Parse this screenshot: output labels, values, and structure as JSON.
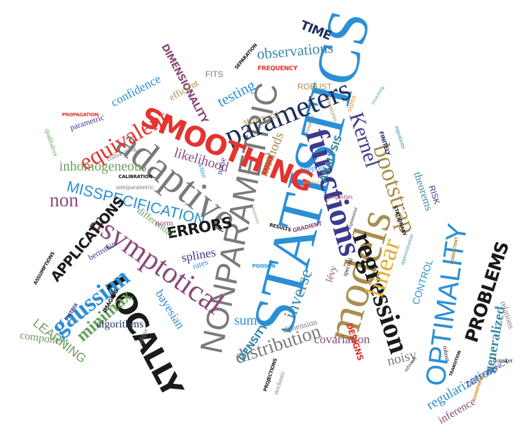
{
  "colors": {
    "blue": "#2b8fd6",
    "navy": "#1f2f5a",
    "gray": "#7a7a7a",
    "olive": "#a98f4c",
    "plum": "#8a4a7a",
    "red": "#e3342f",
    "green": "#6b9e5f",
    "teal": "#3a8aa6",
    "black": "#1a1a1a",
    "orange": "#e0922b"
  },
  "words": {
    "statistics": "STATISTICS",
    "nonparametric": "NONPARAMETRIC",
    "models": "models",
    "adaptive": "adaptive",
    "functions": "functions",
    "parameters": "parameters",
    "regression": "regression",
    "smoothing": "SMOOTHING",
    "asymptotical": "asymptotical",
    "locally": "LOCALLY",
    "optimality": "OPTIMALITY",
    "bootstrap": "bootstrap",
    "linear": "linear",
    "distribution": "distribution",
    "gaussian": "gaussian",
    "equivalent": "equivalent",
    "misspecification": "MISSPECIFICATION",
    "problems": "PROBLEMS",
    "non": "non",
    "kernel": "Kernel",
    "inverse": "inverse",
    "errors": "ERRORS",
    "observations": "observations",
    "inhomogeneous": "inhomogeneous",
    "minimax": "minimax",
    "applications": "APPLICATIONS",
    "testing": "testing",
    "dimensionality": "DIMENSIONALITY",
    "likelihood": "likelihood",
    "methods": "methods",
    "confidence": "confidence",
    "generalized": "generalized",
    "regularization": "regularization",
    "time": "TIME",
    "learning": "LEARNING",
    "covariation": "covariation",
    "noisy": "noisy",
    "bayesian": "bayesian",
    "splines": "splines",
    "sum": "sum",
    "density": "DENSITY",
    "algorithms": "algorithms",
    "component": "component",
    "theorems": "theorems",
    "analysis": "ANALYSIS",
    "control": "CONTROL",
    "designs": "DESIGNS",
    "inference": "inference",
    "efficient": "efficient",
    "fits": "FITS",
    "robust": "ROBUST",
    "frequency": "FREQUENCY",
    "structural": "structural",
    "differential": "differential",
    "bernstein": "bernstein",
    "rates": "rates",
    "norm": "norm",
    "levy": "lévy",
    "dimension": "dimension",
    "risk": "RISK",
    "relations": "relations",
    "dependency": "DEPENDENCY",
    "support": "support",
    "parametric": "parametric",
    "propagation": "PROPAGATION",
    "separation": "SEPARATION",
    "qualitative": "qualitative",
    "converging": "converging",
    "semiparametric": "semiparametric",
    "calibration": "CALIBRATION",
    "white": "white",
    "noise": "noise",
    "imaging": "IMAGING",
    "matrix": "MATRIX",
    "assumptions": "ASSUMPTIONS",
    "poisson": "POISSON",
    "results": "RESULTS",
    "gradient": "GRADIENT",
    "spectral": "spectral",
    "approximation": "approximation",
    "properties": "properties",
    "stationary": "STATIONARY",
    "finitely": "FINITELY",
    "equations": "equations",
    "measures": "measures",
    "sums": "sums",
    "estimation": "estimation",
    "transition": "TRANSITION",
    "donsker": "donsker",
    "sharpness": "SHARPNESS",
    "projections": "PROJECTIONS",
    "stochastic": "stochastic",
    "infinitely": "infinitely",
    "consistent": "CONSISTENT",
    "ellipse": "ellipse",
    "selectors": "selectors",
    "recovering": "recovering",
    "moments": "moments",
    "exponential": "exponential",
    "robust2": "robust"
  }
}
